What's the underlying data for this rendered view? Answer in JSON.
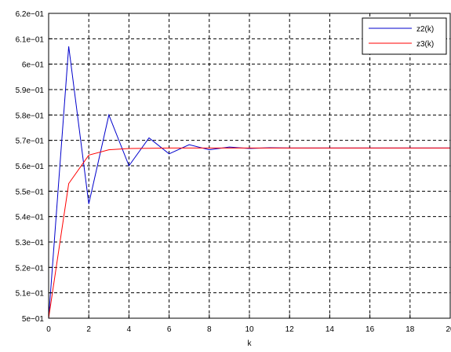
{
  "chart_data": {
    "type": "line",
    "title": "",
    "xlabel": "k",
    "ylabel": "",
    "xlim": [
      0,
      20
    ],
    "ylim": [
      0.5,
      0.62
    ],
    "grid": true,
    "legend_position": "top-right",
    "x_ticks": [
      0,
      2,
      4,
      6,
      8,
      10,
      12,
      14,
      16,
      18,
      20
    ],
    "x_tick_labels": [
      "0",
      "2",
      "4",
      "6",
      "8",
      "10",
      "12",
      "14",
      "16",
      "18",
      "20"
    ],
    "y_ticks": [
      0.5,
      0.51,
      0.52,
      0.53,
      0.54,
      0.55,
      0.56,
      0.57,
      0.58,
      0.59,
      0.6,
      0.61,
      0.62
    ],
    "y_tick_labels": [
      "5e−01",
      "5.1e−01",
      "5.2e−01",
      "5.3e−01",
      "5.4e−01",
      "5.5e−01",
      "5.6e−01",
      "5.7e−01",
      "5.8e−01",
      "5.9e−01",
      "6e−01",
      "6.1e−01",
      "6.2e−01"
    ],
    "x": [
      0,
      1,
      2,
      3,
      4,
      5,
      6,
      7,
      8,
      9,
      10,
      11,
      12,
      13,
      14,
      15,
      16,
      17,
      18,
      19,
      20
    ],
    "series": [
      {
        "name": "z2(k)",
        "color": "#0000cc",
        "values": [
          0.5,
          0.607,
          0.545,
          0.58,
          0.56,
          0.571,
          0.5647,
          0.5683,
          0.5663,
          0.5674,
          0.5668,
          0.5671,
          0.567,
          0.567,
          0.567,
          0.567,
          0.567,
          0.567,
          0.567,
          0.567,
          0.567
        ]
      },
      {
        "name": "z3(k)",
        "color": "#ff0000",
        "values": [
          0.5,
          0.553,
          0.5642,
          0.5663,
          0.5668,
          0.5669,
          0.567,
          0.567,
          0.567,
          0.567,
          0.567,
          0.567,
          0.567,
          0.567,
          0.567,
          0.567,
          0.567,
          0.567,
          0.567,
          0.567,
          0.567
        ]
      }
    ]
  }
}
